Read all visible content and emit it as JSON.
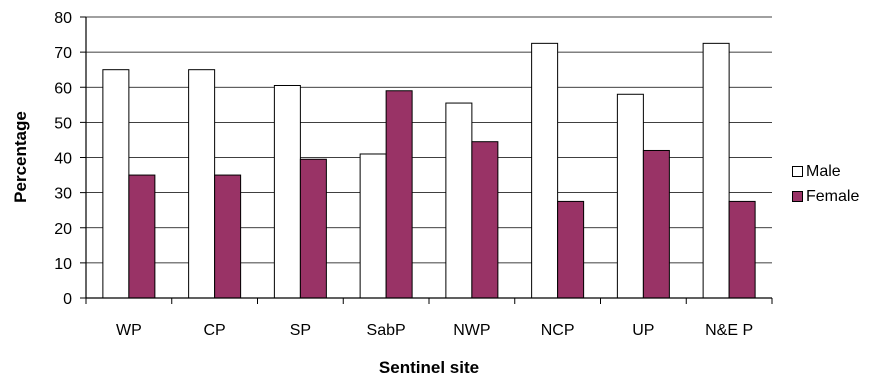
{
  "chart_data": {
    "type": "bar",
    "title": "",
    "xlabel": "Sentinel site",
    "ylabel": "Percentage",
    "ylim": [
      0,
      80
    ],
    "yticks": [
      0,
      10,
      20,
      30,
      40,
      50,
      60,
      70,
      80
    ],
    "grid": true,
    "legend_position": "right",
    "categories": [
      "WP",
      "CP",
      "SP",
      "SabP",
      "NWP",
      "NCP",
      "UP",
      "N&E P"
    ],
    "series": [
      {
        "name": "Male",
        "color": "#ffffff",
        "values": [
          65,
          65,
          60.5,
          41,
          55.5,
          72.5,
          58,
          72.5
        ]
      },
      {
        "name": "Female",
        "color": "#993366",
        "values": [
          35,
          35,
          39.5,
          59,
          44.5,
          27.5,
          42,
          27.5
        ]
      }
    ]
  }
}
